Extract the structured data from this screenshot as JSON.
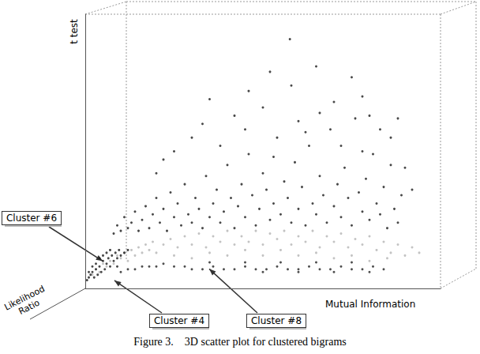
{
  "chart_data": {
    "type": "scatter",
    "title": "Figure 3.    3D scatter plot for clustered bigrams",
    "x_label": "Mutual Information",
    "y_label": "t test",
    "z_label": "Likelihood Ratio",
    "xlim": [
      0,
      100
    ],
    "ylim": [
      0,
      100
    ],
    "grid": false,
    "tick_labels": false,
    "marker": "circle",
    "series": [
      {
        "color": "#1a1a1a",
        "values": [
          [
            8,
            20
          ],
          [
            9,
            23
          ],
          [
            10,
            21
          ],
          [
            11,
            26
          ],
          [
            12,
            22
          ],
          [
            13,
            24
          ],
          [
            14,
            28
          ],
          [
            15,
            21
          ],
          [
            16,
            25
          ],
          [
            17,
            30
          ],
          [
            18,
            22
          ],
          [
            19,
            27
          ],
          [
            20,
            33
          ],
          [
            21,
            24
          ],
          [
            22,
            29
          ],
          [
            23,
            21
          ],
          [
            24,
            35
          ],
          [
            25,
            26
          ],
          [
            26,
            31
          ],
          [
            27,
            23
          ],
          [
            28,
            38
          ],
          [
            29,
            27
          ],
          [
            30,
            24
          ],
          [
            31,
            33
          ],
          [
            32,
            29
          ],
          [
            33,
            22
          ],
          [
            34,
            41
          ],
          [
            35,
            26
          ],
          [
            36,
            31
          ],
          [
            37,
            36
          ],
          [
            38,
            24
          ],
          [
            39,
            28
          ],
          [
            40,
            45
          ],
          [
            41,
            33
          ],
          [
            42,
            22
          ],
          [
            43,
            30
          ],
          [
            44,
            38
          ],
          [
            45,
            26
          ],
          [
            46,
            49
          ],
          [
            47,
            34
          ],
          [
            48,
            23
          ],
          [
            49,
            29
          ],
          [
            50,
            42
          ],
          [
            51,
            36
          ],
          [
            52,
            25
          ],
          [
            53,
            31
          ],
          [
            54,
            55
          ],
          [
            55,
            27
          ],
          [
            56,
            39
          ],
          [
            57,
            33
          ],
          [
            58,
            24
          ],
          [
            59,
            46
          ],
          [
            60,
            29
          ],
          [
            61,
            37
          ],
          [
            62,
            23
          ],
          [
            63,
            52
          ],
          [
            64,
            31
          ],
          [
            65,
            27
          ],
          [
            66,
            41
          ],
          [
            67,
            34
          ],
          [
            68,
            24
          ],
          [
            69,
            58
          ],
          [
            70,
            30
          ],
          [
            71,
            38
          ],
          [
            72,
            26
          ],
          [
            73,
            44
          ],
          [
            74,
            33
          ],
          [
            75,
            23
          ],
          [
            76,
            62
          ],
          [
            77,
            35
          ],
          [
            78,
            28
          ],
          [
            79,
            40
          ],
          [
            80,
            25
          ],
          [
            81,
            49
          ],
          [
            82,
            31
          ],
          [
            83,
            27
          ],
          [
            84,
            37
          ],
          [
            85,
            22
          ],
          [
            86,
            45
          ],
          [
            87,
            29
          ],
          [
            88,
            24
          ],
          [
            89,
            34
          ],
          [
            20,
            42
          ],
          [
            25,
            50
          ],
          [
            30,
            55
          ],
          [
            33,
            60
          ],
          [
            38,
            52
          ],
          [
            42,
            63
          ],
          [
            45,
            58
          ],
          [
            50,
            66
          ],
          [
            53,
            48
          ],
          [
            58,
            74
          ],
          [
            60,
            61
          ],
          [
            62,
            57
          ],
          [
            66,
            64
          ],
          [
            70,
            68
          ],
          [
            72,
            52
          ],
          [
            75,
            77
          ],
          [
            78,
            70
          ],
          [
            80,
            63
          ],
          [
            83,
            58
          ],
          [
            86,
            55
          ],
          [
            90,
            44
          ],
          [
            92,
            36
          ],
          [
            22,
            47
          ],
          [
            35,
            69
          ],
          [
            46,
            72
          ],
          [
            57.6,
            90.9
          ],
          [
            65,
            81
          ],
          [
            52,
            79
          ],
          [
            78,
            50
          ],
          [
            88,
            62
          ]
        ]
      },
      {
        "color": "#b4b4b4",
        "values": [
          [
            2,
            5
          ],
          [
            3,
            7
          ],
          [
            4,
            6
          ],
          [
            5,
            9
          ],
          [
            6,
            8
          ],
          [
            7,
            10
          ],
          [
            8,
            9
          ],
          [
            9,
            12
          ],
          [
            10,
            11
          ],
          [
            11,
            13
          ],
          [
            12,
            10
          ],
          [
            13,
            14
          ],
          [
            14,
            12
          ],
          [
            15,
            15
          ],
          [
            16,
            13
          ],
          [
            17,
            16
          ],
          [
            18,
            14
          ],
          [
            19,
            17
          ],
          [
            20,
            13
          ],
          [
            22,
            16
          ],
          [
            24,
            18
          ],
          [
            26,
            15
          ],
          [
            28,
            19
          ],
          [
            30,
            16
          ],
          [
            32,
            20
          ],
          [
            34,
            15
          ],
          [
            36,
            19
          ],
          [
            38,
            17
          ],
          [
            40,
            21
          ],
          [
            42,
            16
          ],
          [
            44,
            19
          ],
          [
            46,
            17
          ],
          [
            48,
            21
          ],
          [
            50,
            16
          ],
          [
            52,
            20
          ],
          [
            54,
            18
          ],
          [
            56,
            21
          ],
          [
            58,
            16
          ],
          [
            60,
            19
          ],
          [
            62,
            17
          ],
          [
            64,
            21
          ],
          [
            66,
            15
          ],
          [
            68,
            19
          ],
          [
            70,
            17
          ],
          [
            72,
            20
          ],
          [
            74,
            15
          ],
          [
            76,
            18
          ],
          [
            78,
            16
          ],
          [
            80,
            19
          ],
          [
            82,
            14
          ],
          [
            84,
            17
          ],
          [
            86,
            13
          ],
          [
            88,
            16
          ],
          [
            90,
            12
          ],
          [
            92,
            15
          ],
          [
            94,
            13
          ],
          [
            25,
            12
          ],
          [
            35,
            13
          ],
          [
            45,
            14
          ],
          [
            55,
            14
          ],
          [
            65,
            13
          ],
          [
            75,
            12
          ],
          [
            85,
            11
          ],
          [
            30,
            11
          ],
          [
            50,
            12
          ],
          [
            70,
            11
          ],
          [
            40,
            12
          ],
          [
            60,
            12
          ],
          [
            80,
            10
          ]
        ]
      },
      {
        "color": "#222222",
        "values": [
          [
            10,
            6
          ],
          [
            12,
            7
          ],
          [
            14,
            7
          ],
          [
            16,
            8
          ],
          [
            18,
            8
          ],
          [
            20,
            8
          ],
          [
            22,
            9
          ],
          [
            25,
            8
          ],
          [
            28,
            8
          ],
          [
            30,
            7
          ],
          [
            33,
            7
          ],
          [
            36,
            8
          ],
          [
            39,
            7
          ],
          [
            42,
            7
          ],
          [
            45,
            8
          ],
          [
            48,
            7
          ],
          [
            51,
            7
          ],
          [
            54,
            8
          ],
          [
            57,
            7
          ],
          [
            60,
            7
          ],
          [
            63,
            8
          ],
          [
            66,
            7
          ],
          [
            69,
            7
          ],
          [
            72,
            8
          ],
          [
            75,
            7
          ],
          [
            78,
            7
          ],
          [
            81,
            8
          ],
          [
            84,
            7
          ],
          [
            35,
            9.5
          ],
          [
            45,
            9.5
          ],
          [
            55,
            9.5
          ],
          [
            65,
            9.5
          ],
          [
            75,
            9.5
          ],
          [
            50,
            6
          ],
          [
            60,
            6
          ],
          [
            70,
            6
          ],
          [
            80,
            6
          ]
        ]
      },
      {
        "color": "#1a1a1a",
        "values": [
          [
            0.5,
            3
          ],
          [
            1,
            4
          ],
          [
            1.5,
            5
          ],
          [
            2,
            6
          ],
          [
            2.5,
            4
          ],
          [
            3,
            7
          ],
          [
            3.5,
            5
          ],
          [
            4,
            8
          ],
          [
            4.5,
            6
          ],
          [
            5,
            10
          ],
          [
            5.5,
            7
          ],
          [
            6,
            9
          ],
          [
            6.5,
            11
          ],
          [
            7,
            8
          ],
          [
            7.5,
            12
          ],
          [
            8,
            10
          ],
          [
            8.5,
            13
          ],
          [
            9,
            11
          ],
          [
            9.5,
            14
          ],
          [
            10,
            12
          ],
          [
            11,
            13
          ],
          [
            12,
            14
          ],
          [
            3,
            9
          ],
          [
            4,
            11
          ],
          [
            5,
            12
          ],
          [
            6,
            13
          ],
          [
            2,
            8
          ],
          [
            7,
            14
          ],
          [
            1,
            6
          ],
          [
            9,
            8
          ]
        ]
      }
    ],
    "annotations": [
      {
        "text": "Cluster #6",
        "x": 4.9,
        "y": 10
      },
      {
        "text": "Cluster #4",
        "x": 8.2,
        "y": 2.9
      },
      {
        "text": "Cluster #8",
        "x": 34.9,
        "y": 7.1
      }
    ]
  }
}
